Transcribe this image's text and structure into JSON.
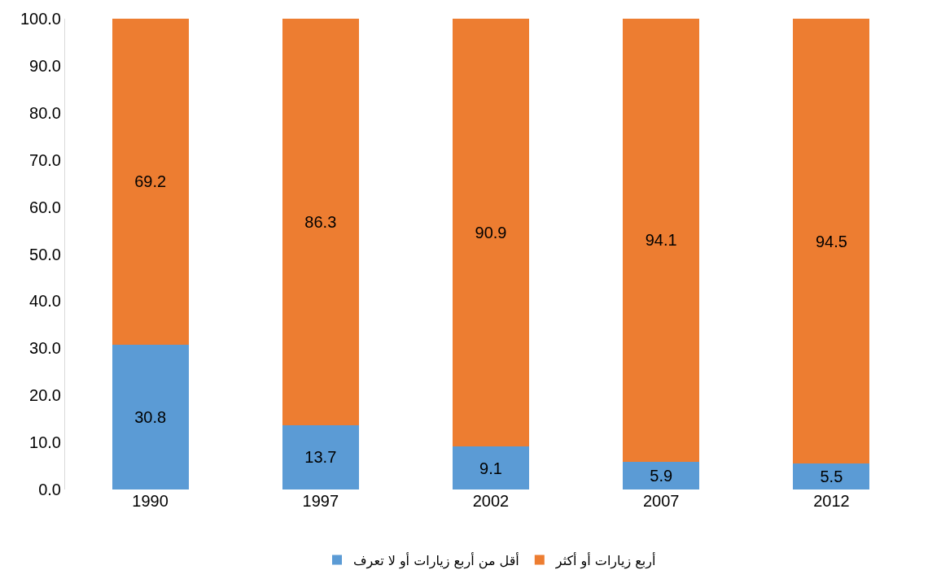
{
  "chart_data": {
    "type": "bar",
    "stacked": true,
    "categories": [
      "1990",
      "1997",
      "2002",
      "2007",
      "2012"
    ],
    "series": [
      {
        "name": "أقل من أربع زيارات أو لا تعرف",
        "color": "#5b9bd5",
        "values": [
          30.8,
          13.7,
          9.1,
          5.9,
          5.5
        ]
      },
      {
        "name": "أربع زيارات أو أكثر",
        "color": "#ed7d31",
        "values": [
          69.2,
          86.3,
          90.9,
          94.1,
          94.5
        ]
      }
    ],
    "ylim": [
      0,
      100
    ],
    "yticks": [
      {
        "value": 0,
        "label": "0.0"
      },
      {
        "value": 10,
        "label": "10.0"
      },
      {
        "value": 20,
        "label": "20.0"
      },
      {
        "value": 30,
        "label": "30.0"
      },
      {
        "value": 40,
        "label": "40.0"
      },
      {
        "value": 50,
        "label": "50.0"
      },
      {
        "value": 60,
        "label": "60.0"
      },
      {
        "value": 70,
        "label": "70.0"
      },
      {
        "value": 80,
        "label": "80.0"
      },
      {
        "value": 90,
        "label": "90.0"
      },
      {
        "value": 100,
        "label": "100.0"
      }
    ],
    "data_labels": true,
    "legend": "bottom"
  }
}
